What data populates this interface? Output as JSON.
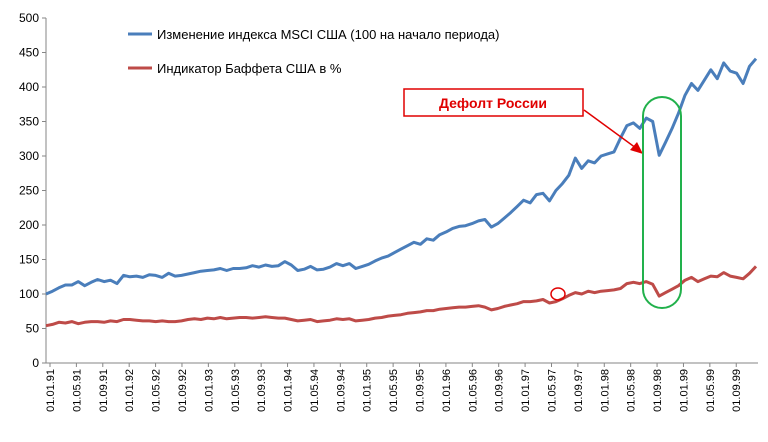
{
  "chart_data": {
    "type": "line",
    "title": "",
    "xlabel": "",
    "ylabel": "",
    "ylim": [
      0,
      500
    ],
    "yticks": [
      0,
      50,
      100,
      150,
      200,
      250,
      300,
      350,
      400,
      450,
      500
    ],
    "grid": "none",
    "legend_position": "top-left",
    "x_tick_labels": [
      "01.01.91",
      "01.05.91",
      "01.09.91",
      "01.01.92",
      "01.05.92",
      "01.09.92",
      "01.01.93",
      "01.05.93",
      "01.09.93",
      "01.01.94",
      "01.05.94",
      "01.09.94",
      "01.01.95",
      "01.05.95",
      "01.09.95",
      "01.01.96",
      "01.05.96",
      "01.09.96",
      "01.01.97",
      "01.05.97",
      "01.09.97",
      "01.01.98",
      "01.05.98",
      "01.09.98",
      "01.01.99",
      "01.05.99",
      "01.09.99"
    ],
    "series": [
      {
        "name": "Изменение индекса MSCI США (100 на начало периода)",
        "color": "#4a7ebb",
        "values": [
          100,
          104,
          109,
          113,
          113,
          118,
          112,
          117,
          121,
          118,
          120,
          115,
          127,
          125,
          126,
          124,
          128,
          127,
          124,
          130,
          126,
          127,
          129,
          131,
          133,
          134,
          135,
          137,
          134,
          137,
          137,
          138,
          141,
          139,
          142,
          140,
          141,
          147,
          142,
          134,
          136,
          140,
          135,
          136,
          139,
          144,
          141,
          144,
          137,
          140,
          143,
          148,
          152,
          155,
          160,
          165,
          170,
          175,
          172,
          180,
          178,
          186,
          190,
          195,
          198,
          199,
          202,
          206,
          208,
          197,
          202,
          210,
          218,
          227,
          236,
          232,
          244,
          246,
          235,
          250,
          260,
          272,
          297,
          282,
          293,
          290,
          300,
          303,
          306,
          326,
          344,
          348,
          340,
          355,
          350,
          301,
          320,
          340,
          362,
          388,
          405,
          395,
          410,
          425,
          412,
          435,
          423,
          420,
          405,
          430,
          441
        ]
      },
      {
        "name": "Индикатор Баффета США в %",
        "color": "#be4b48",
        "values": [
          54,
          56,
          59,
          58,
          60,
          57,
          59,
          60,
          60,
          59,
          61,
          60,
          63,
          63,
          62,
          61,
          61,
          60,
          61,
          60,
          60,
          61,
          63,
          64,
          63,
          65,
          64,
          66,
          64,
          65,
          66,
          66,
          65,
          66,
          67,
          66,
          65,
          65,
          63,
          61,
          62,
          63,
          60,
          61,
          62,
          64,
          63,
          64,
          61,
          62,
          63,
          65,
          66,
          68,
          69,
          70,
          72,
          73,
          74,
          76,
          76,
          78,
          79,
          80,
          81,
          81,
          82,
          83,
          81,
          77,
          79,
          82,
          84,
          86,
          89,
          89,
          90,
          92,
          87,
          89,
          93,
          98,
          102,
          100,
          104,
          102,
          104,
          105,
          106,
          108,
          115,
          117,
          115,
          118,
          114,
          97,
          102,
          107,
          112,
          120,
          124,
          118,
          122,
          126,
          125,
          131,
          126,
          124,
          122,
          130,
          140
        ]
      }
    ],
    "annotations": [
      {
        "text": "Дефолт России",
        "color": "#e00000"
      }
    ]
  }
}
